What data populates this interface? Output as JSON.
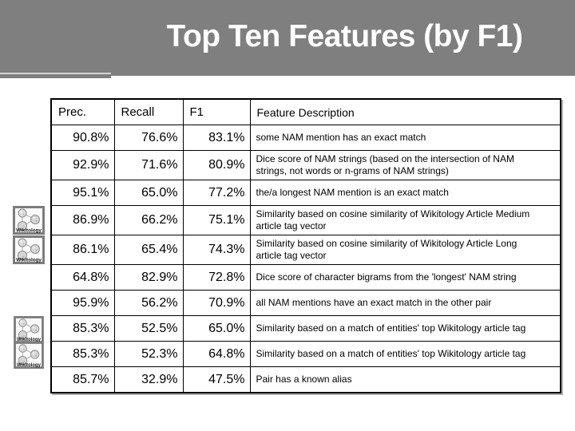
{
  "slide": {
    "title": "Top Ten Features (by F1)"
  },
  "wikitology_icon": {
    "label": "Wikitology"
  },
  "table": {
    "headers": {
      "prec": "Prec.",
      "recall": "Recall",
      "f1": "F1",
      "desc": "Feature Description"
    },
    "rows": [
      {
        "prec": "90.8%",
        "recall": "76.6%",
        "f1": "83.1%",
        "desc": "some NAM mention has an exact match",
        "wikitology_icon": false
      },
      {
        "prec": "92.9%",
        "recall": "71.6%",
        "f1": "80.9%",
        "desc": "Dice score of NAM strings (based on the intersection of NAM strings, not words or n-grams of NAM strings)",
        "wikitology_icon": false
      },
      {
        "prec": "95.1%",
        "recall": "65.0%",
        "f1": "77.2%",
        "desc": "the/a longest NAM mention is an exact match",
        "wikitology_icon": false
      },
      {
        "prec": "86.9%",
        "recall": "66.2%",
        "f1": "75.1%",
        "desc": "Similarity based on cosine similarity of Wikitology Article Medium article tag vector",
        "wikitology_icon": true
      },
      {
        "prec": "86.1%",
        "recall": "65.4%",
        "f1": "74.3%",
        "desc": "Similarity based on cosine similarity of Wikitology Article Long article tag vector",
        "wikitology_icon": true
      },
      {
        "prec": "64.8%",
        "recall": "82.9%",
        "f1": "72.8%",
        "desc": "Dice score of character bigrams from the 'longest' NAM string",
        "wikitology_icon": false
      },
      {
        "prec": "95.9%",
        "recall": "56.2%",
        "f1": "70.9%",
        "desc": "all NAM mentions have an exact match in the other pair",
        "wikitology_icon": false
      },
      {
        "prec": "85.3%",
        "recall": "52.5%",
        "f1": "65.0%",
        "desc": "Similarity based on a match of entities' top Wikitology article tag",
        "wikitology_icon": true
      },
      {
        "prec": "85.3%",
        "recall": "52.3%",
        "f1": "64.8%",
        "desc": "Similarity based on a match of entities' top Wikitology article tag",
        "wikitology_icon": true
      },
      {
        "prec": "85.7%",
        "recall": "32.9%",
        "f1": "47.5%",
        "desc": "Pair has a known alias",
        "wikitology_icon": false
      }
    ]
  },
  "colors": {
    "title_band": "#7f7f7f",
    "title_text": "#ffffff",
    "accent_line": "#d4d4d4",
    "body_bg": "#ffffff",
    "table_border": "#000000",
    "table_text": "#000000"
  }
}
